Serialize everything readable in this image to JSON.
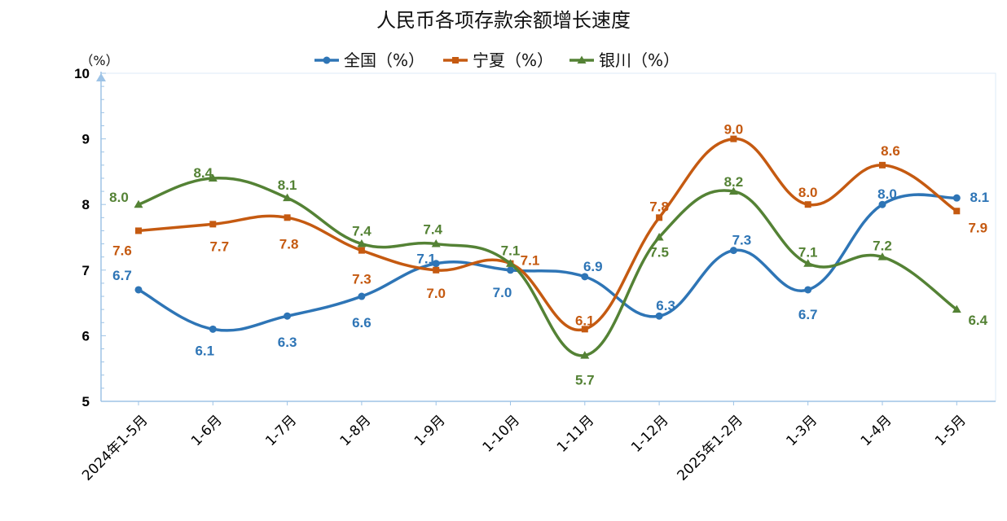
{
  "chart_data": {
    "type": "line",
    "title": "人民币各项存款余额增长速度",
    "unit_label": "（%）",
    "categories": [
      "2024年1-5月",
      "1-6月",
      "1-7月",
      "1-8月",
      "1-9月",
      "1-10月",
      "1-11月",
      "1-12月",
      "2025年1-2月",
      "1-3月",
      "1-4月",
      "1-5月"
    ],
    "ylim": [
      5,
      10
    ],
    "yticks": [
      "5",
      "6",
      "7",
      "8",
      "9",
      "10"
    ],
    "grid": false,
    "legend_position": "top-center",
    "series": [
      {
        "name": "全国（%）",
        "color": "#2E75B6",
        "marker": "circle",
        "values": [
          6.7,
          6.1,
          6.3,
          6.6,
          7.1,
          7.0,
          6.9,
          6.3,
          7.3,
          6.7,
          8.0,
          8.1
        ],
        "labels": [
          "6.7",
          "6.1",
          "6.3",
          "6.6",
          "7.1",
          "7.0",
          "6.9",
          "6.3",
          "7.3",
          "6.7",
          "8.0",
          "8.1"
        ]
      },
      {
        "name": "宁夏（%）",
        "color": "#C55A11",
        "marker": "square",
        "values": [
          7.6,
          7.7,
          7.8,
          7.3,
          7.0,
          7.1,
          6.1,
          7.8,
          9.0,
          8.0,
          8.6,
          7.9
        ],
        "labels": [
          "7.6",
          "7.7",
          "7.8",
          "7.3",
          "7.0",
          "7.1",
          "6.1",
          "7.8",
          "9.0",
          "8.0",
          "8.6",
          "7.9"
        ]
      },
      {
        "name": "银川（%）",
        "color": "#548235",
        "marker": "triangle",
        "values": [
          8.0,
          8.4,
          8.1,
          7.4,
          7.4,
          7.1,
          5.7,
          7.5,
          8.2,
          7.1,
          7.2,
          6.4
        ],
        "labels": [
          "8.0",
          "8.4",
          "8.1",
          "7.4",
          "7.4",
          "7.1",
          "5.7",
          "7.5",
          "8.2",
          "7.1",
          "7.2",
          "6.4"
        ]
      }
    ]
  }
}
